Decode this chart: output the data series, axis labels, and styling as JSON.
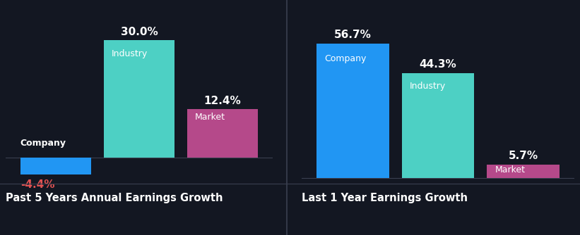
{
  "background_color": "#131722",
  "left_chart": {
    "title": "Past 5 Years Annual Earnings Growth",
    "bars": [
      {
        "label": "Company",
        "value": -4.4,
        "color": "#2196f3"
      },
      {
        "label": "Industry",
        "value": 30.0,
        "color": "#4dd0c4"
      },
      {
        "label": "Market",
        "value": 12.4,
        "color": "#b5498a"
      }
    ]
  },
  "right_chart": {
    "title": "Last 1 Year Earnings Growth",
    "bars": [
      {
        "label": "Company",
        "value": 56.7,
        "color": "#2196f3"
      },
      {
        "label": "Industry",
        "value": 44.3,
        "color": "#4dd0c4"
      },
      {
        "label": "Market",
        "value": 5.7,
        "color": "#b5498a"
      }
    ]
  },
  "text_color": "#ffffff",
  "negative_value_color": "#e05252",
  "title_fontsize": 10.5,
  "label_fontsize": 9,
  "value_fontsize": 11,
  "bar_width": 0.85,
  "divider_color": "#2a2e39",
  "line_color": "#3a3f50"
}
